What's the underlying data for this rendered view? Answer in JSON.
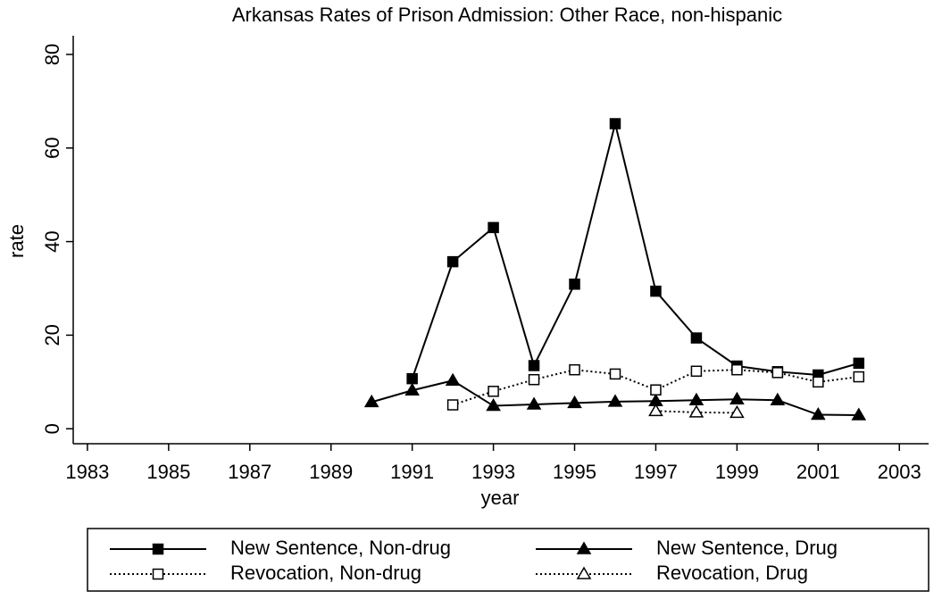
{
  "chart_data": {
    "type": "line",
    "title": "Arkansas Rates of Prison Admission: Other Race, non-hispanic",
    "x_label": "year",
    "y_label": "rate",
    "x": [
      1990,
      1991,
      1992,
      1993,
      1994,
      1995,
      1996,
      1997,
      1998,
      1999,
      2000,
      2001,
      2002
    ],
    "series": [
      {
        "name": "New Sentence, Non-drug",
        "color": "#000000",
        "line_style": "solid",
        "marker": "square",
        "filled": true,
        "values": [
          null,
          10.7,
          35.7,
          43.0,
          13.5,
          30.9,
          65.2,
          29.4,
          19.4,
          13.4,
          12.2,
          11.5,
          14.0
        ]
      },
      {
        "name": "New Sentence, Drug",
        "color": "#000000",
        "line_style": "solid",
        "marker": "triangle",
        "filled": true,
        "values": [
          5.7,
          8.2,
          10.3,
          4.9,
          5.2,
          5.5,
          5.8,
          5.9,
          6.1,
          6.3,
          6.1,
          3.0,
          2.9
        ]
      },
      {
        "name": "Revocation, Non-drug",
        "color": "#000000",
        "line_style": "dotted",
        "marker": "square",
        "filled": false,
        "values": [
          null,
          null,
          5.1,
          8.0,
          10.5,
          12.6,
          11.7,
          8.3,
          12.3,
          12.6,
          12.0,
          10.0,
          11.1
        ]
      },
      {
        "name": "Revocation, Drug",
        "color": "#000000",
        "line_style": "dotted",
        "marker": "triangle",
        "filled": false,
        "values": [
          null,
          null,
          null,
          null,
          null,
          null,
          null,
          3.8,
          3.5,
          3.4,
          null,
          null,
          null
        ]
      }
    ],
    "xlim": [
      1982.65,
      2003.72
    ],
    "xticks": [
      1983,
      1985,
      1987,
      1989,
      1991,
      1993,
      1995,
      1997,
      1999,
      2001,
      2003
    ],
    "ylim": [
      -3.2,
      84
    ],
    "yticks": [
      0,
      20,
      40,
      60,
      80
    ],
    "grid": false,
    "legend": "bottom"
  }
}
